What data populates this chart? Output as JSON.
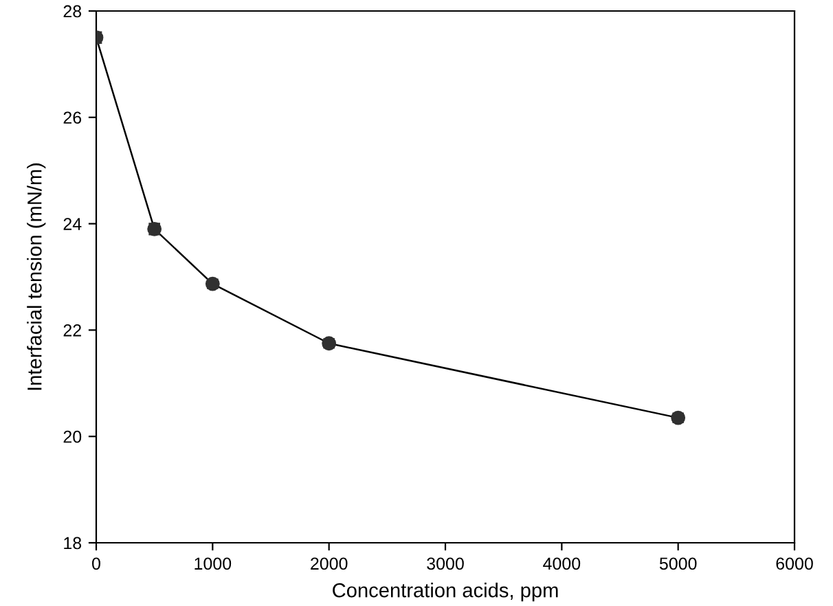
{
  "chart_data": {
    "type": "line",
    "xlabel": "Concentration acids, ppm",
    "ylabel": "Interfacial tension (mN/m)",
    "x": [
      0,
      500,
      1000,
      2000,
      5000
    ],
    "series": [
      {
        "color": "#303030",
        "values": [
          27.5,
          23.9,
          22.87,
          21.75,
          20.35
        ],
        "errors": [
          0.1,
          0.1,
          0.08,
          0.08,
          0.08
        ]
      }
    ],
    "xlim": [
      0,
      6000
    ],
    "xticks": [
      0,
      1000,
      2000,
      3000,
      4000,
      5000,
      6000
    ],
    "ylim": [
      18,
      28
    ],
    "yticks": [
      18,
      20,
      22,
      24,
      26,
      28
    ],
    "grid": false,
    "marker": "circle",
    "line_style": "solid"
  }
}
